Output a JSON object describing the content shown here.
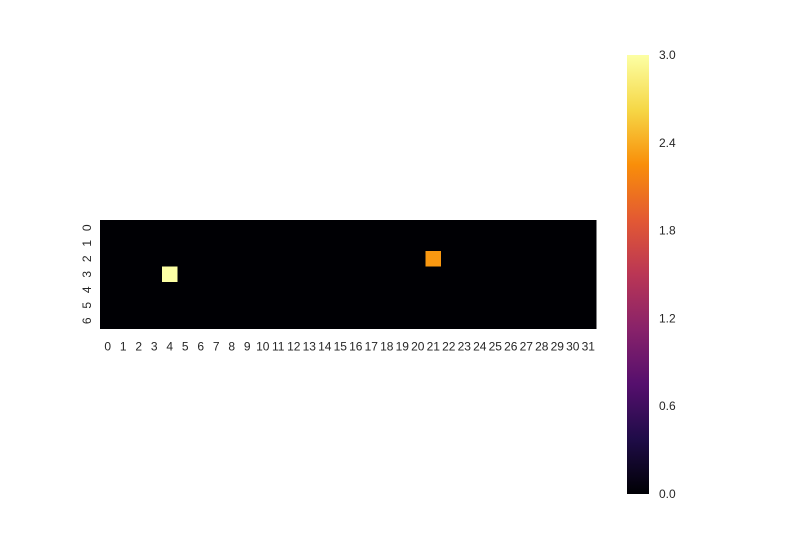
{
  "chart_data": {
    "type": "heatmap",
    "title": "",
    "xlabel": "",
    "ylabel": "",
    "rows": 7,
    "cols": 32,
    "x_tick_labels": [
      "0",
      "1",
      "2",
      "3",
      "4",
      "5",
      "6",
      "7",
      "8",
      "9",
      "10",
      "11",
      "12",
      "13",
      "14",
      "15",
      "16",
      "17",
      "18",
      "19",
      "20",
      "21",
      "22",
      "23",
      "24",
      "25",
      "26",
      "27",
      "28",
      "29",
      "30",
      "31"
    ],
    "y_tick_labels": [
      "0",
      "1",
      "2",
      "3",
      "4",
      "5",
      "6"
    ],
    "values": [
      [
        0,
        0,
        0,
        0,
        0,
        0,
        0,
        0,
        0,
        0,
        0,
        0,
        0,
        0,
        0,
        0,
        0,
        0,
        0,
        0,
        0,
        0,
        0,
        0,
        0,
        0,
        0,
        0,
        0,
        0,
        0,
        0
      ],
      [
        0,
        0,
        0,
        0,
        0,
        0,
        0,
        0,
        0,
        0,
        0,
        0,
        0,
        0,
        0,
        0,
        0,
        0,
        0,
        0,
        0,
        0,
        0,
        0,
        0,
        0,
        0,
        0,
        0,
        0,
        0,
        0
      ],
      [
        0,
        0,
        0,
        0,
        0,
        0,
        0,
        0,
        0,
        0,
        0,
        0,
        0,
        0,
        0,
        0,
        0,
        0,
        0,
        0,
        0,
        2.3,
        0,
        0,
        0,
        0,
        0,
        0,
        0,
        0,
        0,
        0
      ],
      [
        0,
        0,
        0,
        0,
        3.0,
        0,
        0,
        0,
        0,
        0,
        0,
        0,
        0,
        0,
        0,
        0,
        0,
        0,
        0,
        0,
        0,
        0,
        0,
        0,
        0,
        0,
        0,
        0,
        0,
        0,
        0,
        0
      ],
      [
        0,
        0,
        0,
        0,
        0,
        0,
        0,
        0,
        0,
        0,
        0,
        0,
        0,
        0,
        0,
        0,
        0,
        0,
        0,
        0,
        0,
        0,
        0,
        0,
        0,
        0,
        0,
        0,
        0,
        0,
        0,
        0
      ],
      [
        0,
        0,
        0,
        0,
        0,
        0,
        0,
        0,
        0,
        0,
        0,
        0,
        0,
        0,
        0,
        0,
        0,
        0,
        0,
        0,
        0,
        0,
        0,
        0,
        0,
        0,
        0,
        0,
        0,
        0,
        0,
        0
      ],
      [
        0,
        0,
        0,
        0,
        0,
        0,
        0,
        0,
        0,
        0,
        0,
        0,
        0,
        0,
        0,
        0,
        0,
        0,
        0,
        0,
        0,
        0,
        0,
        0,
        0,
        0,
        0,
        0,
        0,
        0,
        0,
        0
      ]
    ],
    "colormap": "inferno",
    "vmin": 0.0,
    "vmax": 3.0,
    "colorbar_ticks": [
      "0.0",
      "0.6",
      "1.2",
      "1.8",
      "2.4",
      "3.0"
    ],
    "grid": false,
    "legend": "colorbar-right"
  }
}
